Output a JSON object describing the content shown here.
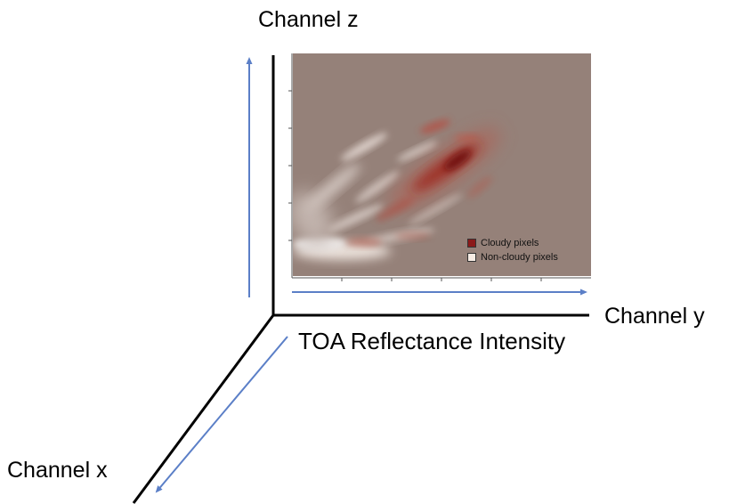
{
  "axes": {
    "z_label": "Channel z",
    "y_label": "Channel y",
    "x_label": "Channel x",
    "measure_label": "TOA Reflectance Intensity"
  },
  "legend": {
    "items": [
      {
        "label": "Cloudy pixels",
        "color": "#8b1a1a"
      },
      {
        "label": "Non-cloudy pixels",
        "color": "#f7ece4"
      }
    ]
  },
  "colors": {
    "arrow": "#5b7fc7",
    "axis": "#000000",
    "plot_background": "#958179"
  }
}
